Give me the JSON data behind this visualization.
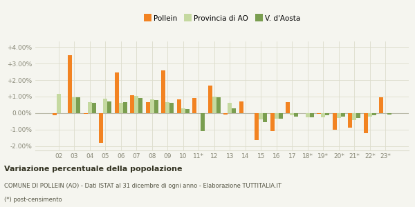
{
  "categories": [
    "02",
    "03",
    "04",
    "05",
    "06",
    "07",
    "08",
    "09",
    "10",
    "11*",
    "12",
    "13",
    "14",
    "15",
    "16",
    "17",
    "18*",
    "19*",
    "20*",
    "21*",
    "22*",
    "23*"
  ],
  "pollein": [
    -0.13,
    3.5,
    -0.05,
    -1.8,
    2.45,
    1.1,
    0.68,
    2.6,
    0.85,
    0.9,
    1.65,
    -0.1,
    0.72,
    -1.65,
    -1.08,
    0.68,
    0.0,
    -0.05,
    -1.0,
    -0.88,
    -1.22,
    0.95
  ],
  "provincia": [
    1.15,
    0.95,
    0.65,
    0.88,
    0.62,
    1.05,
    0.82,
    0.65,
    0.3,
    0.0,
    0.98,
    0.6,
    0.0,
    -0.4,
    -0.35,
    -0.15,
    -0.28,
    -0.28,
    -0.3,
    -0.42,
    -0.2,
    0.0
  ],
  "vaosta": [
    0.0,
    0.95,
    0.6,
    0.72,
    0.65,
    0.92,
    0.78,
    0.6,
    0.25,
    -1.1,
    0.95,
    0.3,
    0.0,
    -0.55,
    -0.35,
    -0.2,
    -0.28,
    -0.15,
    -0.22,
    -0.3,
    -0.15,
    -0.1
  ],
  "color_pollein": "#f28322",
  "color_provincia": "#c5d9a0",
  "color_vaosta": "#7a9e50",
  "bar_width": 0.27,
  "ylim": [
    -2.25,
    4.35
  ],
  "yticks": [
    -2.0,
    -1.0,
    0.0,
    1.0,
    2.0,
    3.0,
    4.0
  ],
  "ytick_labels": [
    "-2.00%",
    "-1.00%",
    "0.00%",
    "+1.00%",
    "+2.00%",
    "+3.00%",
    "+4.00%"
  ],
  "bg_color": "#f5f5ef",
  "grid_color": "#ddddcc",
  "title_bold": "Variazione percentuale della popolazione",
  "subtitle1": "COMUNE DI POLLEIN (AO) - Dati ISTAT al 31 dicembre di ogni anno - Elaborazione TUTTITALIA.IT",
  "subtitle2": "(*) post-censimento",
  "legend_labels": [
    "Pollein",
    "Provincia di AO",
    "V. d'Aosta"
  ]
}
